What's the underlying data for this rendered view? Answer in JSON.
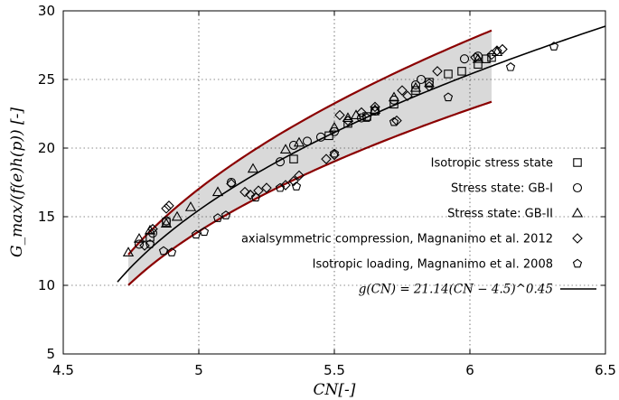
{
  "chart_data": {
    "type": "scatter",
    "xlabel": "CN[-]",
    "ylabel": "G_max/(f(e)h(p))  [-]",
    "xlim": [
      4.5,
      6.5
    ],
    "ylim": [
      5,
      30
    ],
    "xticks": [
      "4.5",
      "5",
      "5.5",
      "6",
      "6.5"
    ],
    "yticks": [
      "5",
      "10",
      "15",
      "20",
      "25",
      "30"
    ],
    "grid": "dashed",
    "legend_position": "right-middle",
    "band": {
      "fill": "#d9d9d9",
      "edge_color": "#8b0000",
      "x_range": [
        4.74,
        6.08
      ],
      "upper_factor": 1.1,
      "lower_factor": 0.9
    },
    "fit": {
      "label": "g(CN) = 21.14(CN − 4.5)^0.45",
      "a": 21.14,
      "c": 4.5,
      "b": 0.45,
      "x_range": [
        4.7,
        6.5
      ],
      "color": "#000000"
    },
    "series": [
      {
        "name": "Isotropic stress state",
        "marker": "square",
        "points": [
          [
            4.82,
            13.5
          ],
          [
            4.88,
            14.6
          ],
          [
            5.35,
            19.2
          ],
          [
            5.48,
            20.9
          ],
          [
            5.55,
            21.8
          ],
          [
            5.62,
            22.3
          ],
          [
            5.65,
            22.7
          ],
          [
            5.72,
            23.2
          ],
          [
            5.8,
            24.2
          ],
          [
            5.85,
            24.8
          ],
          [
            5.92,
            25.4
          ],
          [
            5.97,
            25.6
          ],
          [
            6.03,
            26.1
          ],
          [
            6.06,
            26.5
          ],
          [
            6.08,
            26.6
          ]
        ]
      },
      {
        "name": "Stress state:  GB-I",
        "marker": "circle",
        "points": [
          [
            4.78,
            13.0
          ],
          [
            4.83,
            13.8
          ],
          [
            4.88,
            14.7
          ],
          [
            5.12,
            17.5
          ],
          [
            5.3,
            19.0
          ],
          [
            5.35,
            20.2
          ],
          [
            5.4,
            20.5
          ],
          [
            5.45,
            20.8
          ],
          [
            5.5,
            21.2
          ],
          [
            5.6,
            22.2
          ],
          [
            5.65,
            22.7
          ],
          [
            5.72,
            23.5
          ],
          [
            5.8,
            24.6
          ],
          [
            5.82,
            25.0
          ],
          [
            5.98,
            26.5
          ],
          [
            6.03,
            26.7
          ]
        ]
      },
      {
        "name": "Stress state:  GB-II",
        "marker": "triangle",
        "points": [
          [
            4.74,
            12.4
          ],
          [
            4.78,
            13.4
          ],
          [
            4.82,
            14.0
          ],
          [
            4.88,
            14.5
          ],
          [
            4.92,
            15.0
          ],
          [
            4.97,
            15.7
          ],
          [
            5.07,
            16.8
          ],
          [
            5.2,
            18.5
          ],
          [
            5.32,
            19.9
          ],
          [
            5.37,
            20.4
          ],
          [
            5.5,
            21.5
          ],
          [
            5.55,
            22.2
          ],
          [
            5.58,
            22.4
          ],
          [
            5.65,
            22.8
          ],
          [
            5.72,
            23.7
          ],
          [
            5.8,
            24.4
          ],
          [
            6.03,
            26.5
          ],
          [
            6.1,
            27.0
          ]
        ]
      },
      {
        "name": "axialsymmetric compression, Magnanimo et al. 2012",
        "marker": "diamond",
        "points": [
          [
            4.8,
            12.9
          ],
          [
            4.83,
            14.1
          ],
          [
            4.88,
            15.6
          ],
          [
            4.89,
            15.8
          ],
          [
            5.12,
            17.4
          ],
          [
            5.17,
            16.8
          ],
          [
            5.19,
            16.6
          ],
          [
            5.22,
            16.9
          ],
          [
            5.25,
            17.1
          ],
          [
            5.32,
            17.3
          ],
          [
            5.35,
            17.6
          ],
          [
            5.37,
            18.0
          ],
          [
            5.47,
            19.2
          ],
          [
            5.5,
            19.5
          ],
          [
            5.52,
            22.4
          ],
          [
            5.55,
            22.0
          ],
          [
            5.6,
            22.6
          ],
          [
            5.65,
            23.0
          ],
          [
            5.73,
            22.0
          ],
          [
            5.75,
            24.2
          ],
          [
            5.77,
            23.8
          ],
          [
            5.85,
            24.5
          ],
          [
            5.88,
            25.6
          ],
          [
            6.02,
            26.6
          ],
          [
            6.08,
            26.8
          ],
          [
            6.1,
            27.1
          ],
          [
            6.12,
            27.2
          ]
        ]
      },
      {
        "name": "Isotropic loading, Magnanimo et al. 2008",
        "marker": "pentagon",
        "points": [
          [
            4.82,
            13.0
          ],
          [
            4.87,
            12.5
          ],
          [
            4.9,
            12.4
          ],
          [
            4.99,
            13.7
          ],
          [
            5.02,
            13.9
          ],
          [
            5.07,
            14.9
          ],
          [
            5.1,
            15.1
          ],
          [
            5.21,
            16.4
          ],
          [
            5.3,
            17.1
          ],
          [
            5.36,
            17.2
          ],
          [
            5.5,
            19.6
          ],
          [
            5.62,
            22.2
          ],
          [
            5.72,
            21.9
          ],
          [
            5.85,
            24.7
          ],
          [
            5.92,
            23.7
          ],
          [
            6.15,
            25.9
          ],
          [
            6.31,
            27.4
          ]
        ]
      }
    ]
  }
}
